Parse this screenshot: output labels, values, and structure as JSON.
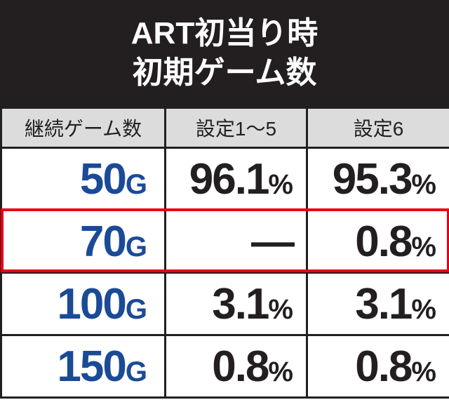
{
  "header": {
    "title_lines": [
      "ART初当り時",
      "初期ゲーム数"
    ]
  },
  "table": {
    "columns": [
      "継続ゲーム数",
      "設定1～5",
      "設定6"
    ],
    "rows": [
      [
        "50G",
        "96.1%",
        "95.3%"
      ],
      [
        "70G",
        "—",
        "0.8%"
      ],
      [
        "100G",
        "3.1%",
        "3.1%"
      ],
      [
        "150G",
        "0.8%",
        "0.8%"
      ]
    ],
    "highlighted_row": 1
  }
}
